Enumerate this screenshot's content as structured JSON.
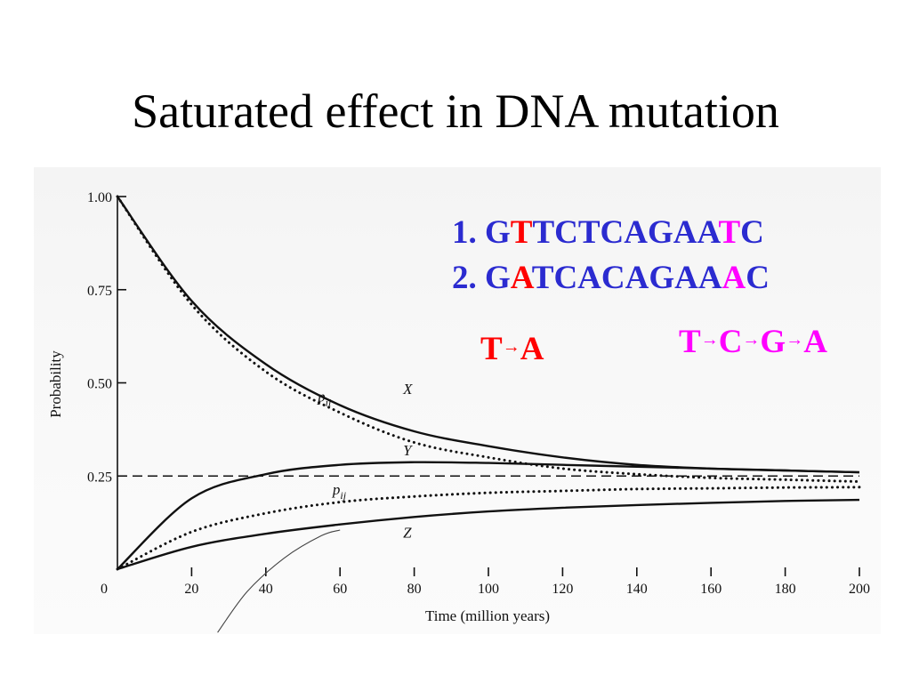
{
  "slide": {
    "title": "Saturated effect in DNA mutation"
  },
  "colors": {
    "sequence_text": "#2b2bd0",
    "transition_highlight": "#ff0000",
    "transversion_highlight": "#ff00ff",
    "curve": "#111111"
  },
  "sequences": [
    {
      "prefix": "1. ",
      "parts": [
        "G",
        "T",
        "TCTCAGAA",
        "T",
        "C"
      ],
      "highlight": [
        false,
        true,
        false,
        true,
        false
      ]
    },
    {
      "prefix": "2. ",
      "parts": [
        "G",
        "A",
        "TCACAGAA",
        "A",
        "C"
      ],
      "highlight": [
        false,
        true,
        false,
        true,
        false
      ]
    }
  ],
  "transition_chain": [
    "T",
    "A"
  ],
  "transversion_chain": [
    "T",
    "C",
    "G",
    "A"
  ],
  "arrow_glyph": "→",
  "chart_data": {
    "type": "line",
    "xlabel": "Time (million years)",
    "ylabel": "Probability",
    "xlim": [
      0,
      200
    ],
    "ylim": [
      0,
      1
    ],
    "x_ticks": [
      0,
      20,
      40,
      60,
      80,
      100,
      120,
      140,
      160,
      180,
      200
    ],
    "y_ticks": [
      "1.00",
      "0.75",
      "0.50",
      "0.25"
    ],
    "y_tick_values": [
      1.0,
      0.75,
      0.5,
      0.25
    ],
    "series": [
      {
        "name": "X",
        "style": "solid",
        "x": [
          0,
          20,
          40,
          60,
          80,
          100,
          120,
          140,
          160,
          180,
          200
        ],
        "y": [
          1.0,
          0.72,
          0.55,
          0.44,
          0.37,
          0.33,
          0.3,
          0.28,
          0.27,
          0.265,
          0.26
        ]
      },
      {
        "name": "p_ii",
        "style": "dotted",
        "x": [
          0,
          20,
          40,
          60,
          80,
          100,
          120,
          140,
          160,
          180,
          200
        ],
        "y": [
          1.0,
          0.71,
          0.53,
          0.42,
          0.34,
          0.3,
          0.27,
          0.255,
          0.245,
          0.24,
          0.235
        ]
      },
      {
        "name": "Y",
        "style": "solid",
        "x": [
          0,
          20,
          40,
          60,
          80,
          100,
          120,
          140,
          160,
          180,
          200
        ],
        "y": [
          0.0,
          0.19,
          0.255,
          0.28,
          0.287,
          0.285,
          0.28,
          0.275,
          0.27,
          0.265,
          0.26
        ]
      },
      {
        "name": "p_ij",
        "style": "dotted",
        "x": [
          0,
          20,
          40,
          60,
          80,
          100,
          120,
          140,
          160,
          180,
          200
        ],
        "y": [
          0.0,
          0.1,
          0.15,
          0.18,
          0.195,
          0.205,
          0.21,
          0.215,
          0.217,
          0.219,
          0.22
        ]
      },
      {
        "name": "Z",
        "style": "solid",
        "x": [
          0,
          20,
          40,
          60,
          80,
          100,
          120,
          140,
          160,
          180,
          200
        ],
        "y": [
          0.0,
          0.06,
          0.095,
          0.12,
          0.14,
          0.155,
          0.165,
          0.172,
          0.178,
          0.183,
          0.186
        ]
      },
      {
        "name": "equilibrium",
        "style": "dashed",
        "x": [
          0,
          200
        ],
        "y": [
          0.25,
          0.25
        ]
      },
      {
        "name": "thin",
        "style": "thin",
        "x": [
          27,
          35,
          45,
          55,
          60
        ],
        "y": [
          -0.17,
          -0.06,
          0.03,
          0.09,
          0.105
        ]
      }
    ],
    "annotations": [
      {
        "text": "X",
        "x": 77,
        "y": 0.47
      },
      {
        "text": "Y",
        "x": 77,
        "y": 0.305
      },
      {
        "text": "Z",
        "x": 77,
        "y": 0.085
      },
      {
        "text": "p",
        "sub": "ii",
        "x": 54,
        "y": 0.45
      },
      {
        "text": "p",
        "sub": "ij",
        "x": 58,
        "y": 0.2
      }
    ]
  }
}
